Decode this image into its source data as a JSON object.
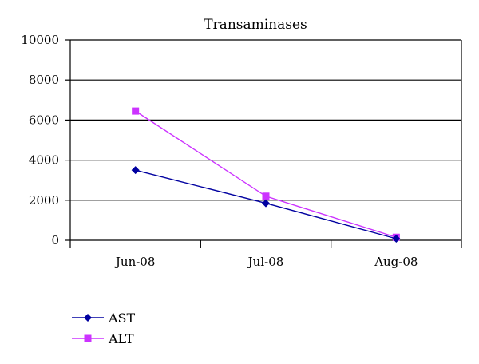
{
  "chart_data": {
    "type": "line",
    "title": "Transaminases",
    "xlabel": "",
    "ylabel": "",
    "categories": [
      "Jun-08",
      "Jul-08",
      "Aug-08"
    ],
    "ylim": [
      0,
      10000
    ],
    "yticks": [
      0,
      2000,
      4000,
      6000,
      8000,
      10000
    ],
    "grid": true,
    "legend": "bottom-left",
    "series": [
      {
        "name": "AST",
        "values": [
          3500,
          1850,
          80
        ],
        "color": "#0000a0",
        "marker": "diamond"
      },
      {
        "name": "ALT",
        "values": [
          6450,
          2200,
          150
        ],
        "color": "#cc33ff",
        "marker": "square"
      }
    ]
  }
}
